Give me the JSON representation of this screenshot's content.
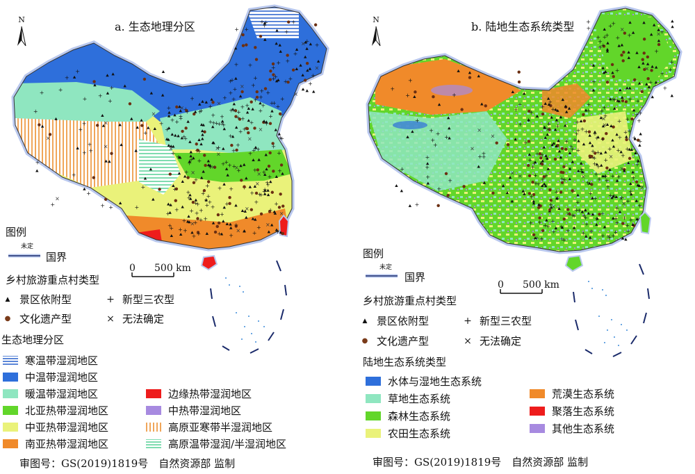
{
  "panel_a": {
    "title": "a. 生态地理分区",
    "north": "N",
    "legend_title": "图例",
    "border_tag": "未定",
    "border_label": "国界",
    "scale": {
      "zero": "0",
      "distance": "500 km"
    },
    "village_type_title": "乡村旅游重点村类型",
    "village_types": [
      {
        "symbol": "▲",
        "label": "景区依附型"
      },
      {
        "symbol": "+",
        "label": "新型三农型"
      },
      {
        "symbol": "●",
        "label": "文化遗产型"
      },
      {
        "symbol": "×",
        "label": "无法确定"
      }
    ],
    "zone_title": "生态地理分区",
    "zones": [
      {
        "label": "寒温带湿润地区",
        "color": "#5b86d8",
        "pattern": "hstripe"
      },
      {
        "label": "中温带湿润地区",
        "color": "#2e6fdb",
        "pattern": "solid"
      },
      {
        "label": "暖温带湿润地区",
        "color": "#8fe6c0",
        "pattern": "solid"
      },
      {
        "label": "北亚热带湿润地区",
        "color": "#62d62a",
        "pattern": "solid"
      },
      {
        "label": "中亚热带湿润地区",
        "color": "#eaf27a",
        "pattern": "solid"
      },
      {
        "label": "南亚热带湿润地区",
        "color": "#f08a2a",
        "pattern": "solid"
      },
      {
        "label": "边缘热带湿润地区",
        "color": "#ee1c1c",
        "pattern": "solid"
      },
      {
        "label": "中热带湿润地区",
        "color": "#a78ae0",
        "pattern": "solid"
      },
      {
        "label": "高原亚寒带半湿润地区",
        "color": "#f0a65a",
        "pattern": "vstripe"
      },
      {
        "label": "高原温带湿润/半湿润地区",
        "color": "#7fdcb0",
        "pattern": "hstripe"
      }
    ],
    "credit": "审图号：GS(2019)1819号　自然资源部 监制"
  },
  "panel_b": {
    "title": "b. 陆地生态系统类型",
    "north": "N",
    "legend_title": "图例",
    "border_tag": "未定",
    "border_label": "国界",
    "scale": {
      "zero": "0",
      "distance": "500 km"
    },
    "village_type_title": "乡村旅游重点村类型",
    "village_types": [
      {
        "symbol": "▲",
        "label": "景区依附型"
      },
      {
        "symbol": "+",
        "label": "新型三农型"
      },
      {
        "symbol": "●",
        "label": "文化遗产型"
      },
      {
        "symbol": "×",
        "label": "无法确定"
      }
    ],
    "ecosystem_title": "陆地生态系统类型",
    "ecosystems": [
      {
        "label": "水体与湿地生态系统",
        "color": "#2e6fdb"
      },
      {
        "label": "草地生态系统",
        "color": "#8fe6c0"
      },
      {
        "label": "森林生态系统",
        "color": "#62d62a"
      },
      {
        "label": "农田生态系统",
        "color": "#eaf27a"
      },
      {
        "label": "荒漠生态系统",
        "color": "#f08a2a"
      },
      {
        "label": "聚落生态系统",
        "color": "#ee1c1c"
      },
      {
        "label": "其他生态系统",
        "color": "#a78ae0"
      }
    ],
    "credit": "审图号：GS(2019)1819号　自然资源部 监制"
  }
}
